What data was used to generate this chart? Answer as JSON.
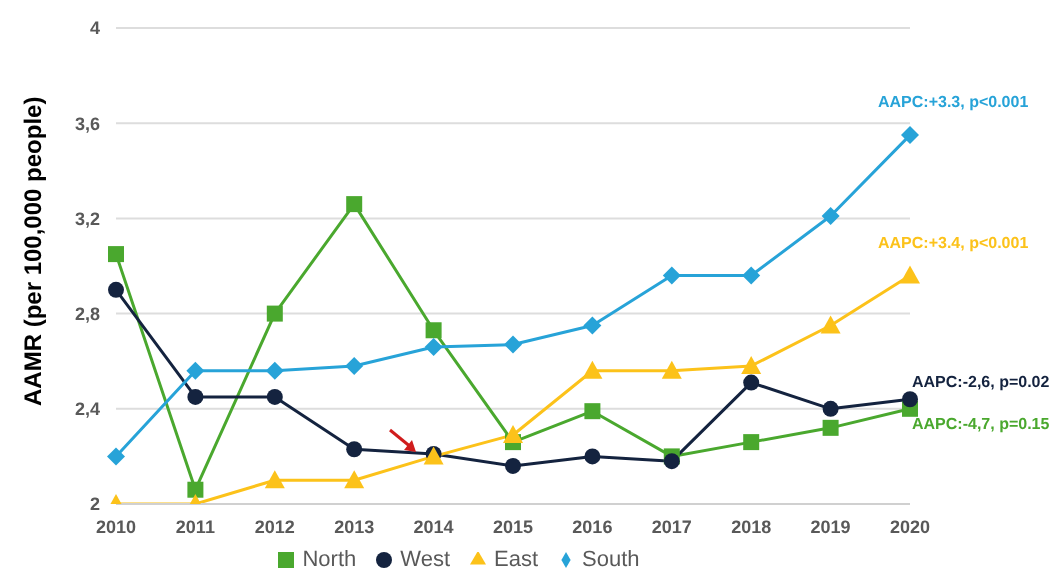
{
  "chart_data": {
    "type": "line",
    "ylabel": "AAMR (per 100,000 people)",
    "categories": [
      "2010",
      "2011",
      "2012",
      "2013",
      "2014",
      "2015",
      "2016",
      "2017",
      "2018",
      "2019",
      "2020"
    ],
    "series": [
      {
        "name": "North",
        "color": "#4aa82e",
        "marker": "square",
        "values": [
          3.05,
          2.06,
          2.8,
          3.26,
          2.73,
          2.26,
          2.39,
          2.2,
          2.26,
          2.32,
          2.4
        ]
      },
      {
        "name": "West",
        "color": "#14233f",
        "marker": "circle",
        "values": [
          2.9,
          2.45,
          2.45,
          2.23,
          2.21,
          2.16,
          2.2,
          2.18,
          2.51,
          2.4,
          2.44
        ]
      },
      {
        "name": "East",
        "color": "#fcc21a",
        "marker": "triangle",
        "values": [
          2.0,
          2.0,
          2.1,
          2.1,
          2.2,
          2.29,
          2.56,
          2.56,
          2.58,
          2.75,
          2.96
        ]
      },
      {
        "name": "South",
        "color": "#27a3d8",
        "marker": "diamond",
        "values": [
          2.2,
          2.56,
          2.56,
          2.58,
          2.66,
          2.67,
          2.75,
          2.96,
          2.96,
          3.21,
          3.55
        ]
      }
    ],
    "ylim": [
      2,
      4
    ],
    "yticks": [
      2,
      {
        "value": 2.4,
        "label": "2,4"
      },
      {
        "value": 2.8,
        "label": "2,8"
      },
      {
        "value": 3.2,
        "label": "3,2"
      },
      {
        "value": 3.6,
        "label": "3,6"
      },
      4
    ],
    "grid": "y",
    "legend": "bottom",
    "line_style": "solid",
    "annotations": [
      {
        "text": "AAPC:+3.3, p<0.001",
        "x": "2020",
        "y": 3.55
      },
      {
        "text": "AAPC:+3.4, p<0.001",
        "x": "2020",
        "y": 2.96
      },
      {
        "text": "AAPC:-2,6, p=0.02",
        "x": "2020",
        "y": 2.44
      },
      {
        "text": "AAPC:-4,7, p=0.15",
        "x": "2020",
        "y": 2.4
      }
    ]
  }
}
